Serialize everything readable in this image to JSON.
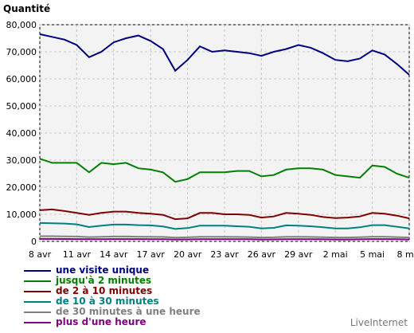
{
  "chart_data": {
    "type": "line",
    "ylabel": "Quantité",
    "ylim": [
      0,
      80000
    ],
    "y_ticks": [
      "0",
      "10,000",
      "20,000",
      "30,000",
      "40,000",
      "50,000",
      "60,000",
      "70,000",
      "80,000"
    ],
    "x_tick_labels": [
      "8 avr",
      "11 avr",
      "14 avr",
      "17 avr",
      "20 avr",
      "23 avr",
      "26 avr",
      "29 avr",
      "2 mai",
      "5 mai",
      "8 mai"
    ],
    "grid": true,
    "legend_position": "bottom",
    "series": [
      {
        "name": "une visite unique",
        "color": "#000080",
        "values": [
          76500,
          75500,
          74500,
          72500,
          68000,
          70000,
          73500,
          75000,
          76000,
          74000,
          71000,
          63000,
          67000,
          72000,
          70000,
          70500,
          70000,
          69500,
          68500,
          70000,
          71000,
          72500,
          71500,
          69500,
          67000,
          66500,
          67500,
          70500,
          69000,
          65500,
          61500
        ]
      },
      {
        "name": "jusqu'à 2 minutes",
        "color": "#008000",
        "values": [
          30500,
          29000,
          29000,
          29000,
          25500,
          29000,
          28500,
          29000,
          27000,
          26500,
          25500,
          22000,
          23000,
          25500,
          25500,
          25500,
          26000,
          26000,
          24000,
          24500,
          26500,
          27000,
          27000,
          26500,
          24500,
          24000,
          23500,
          28000,
          27500,
          25000,
          23500
        ]
      },
      {
        "name": "de 2 à 10 minutes",
        "color": "#800000",
        "values": [
          11500,
          11800,
          11200,
          10500,
          9800,
          10500,
          11000,
          11000,
          10500,
          10200,
          9800,
          8200,
          8500,
          10500,
          10500,
          10000,
          10000,
          9800,
          8800,
          9200,
          10500,
          10200,
          9800,
          9000,
          8600,
          8800,
          9200,
          10500,
          10200,
          9500,
          8500
        ]
      },
      {
        "name": "de 10 à 30 minutes",
        "color": "#008080",
        "values": [
          6800,
          6700,
          6600,
          6300,
          5300,
          5800,
          6200,
          6200,
          6000,
          5900,
          5500,
          4600,
          4900,
          5800,
          5800,
          5800,
          5600,
          5400,
          4800,
          5000,
          5900,
          5800,
          5600,
          5200,
          4800,
          4800,
          5200,
          6000,
          6000,
          5400,
          4800
        ]
      },
      {
        "name": "de 30 minutes à une heure",
        "color": "#808080",
        "values": [
          1900,
          1900,
          1850,
          1800,
          1600,
          1700,
          1800,
          1800,
          1750,
          1700,
          1650,
          1400,
          1500,
          1700,
          1700,
          1700,
          1650,
          1600,
          1450,
          1500,
          1700,
          1700,
          1650,
          1550,
          1450,
          1450,
          1550,
          1750,
          1750,
          1600,
          1450
        ]
      },
      {
        "name": "plus d'une heure",
        "color": "#800080",
        "values": [
          900,
          900,
          880,
          850,
          780,
          820,
          860,
          860,
          840,
          820,
          800,
          700,
          740,
          820,
          820,
          820,
          800,
          780,
          720,
          740,
          820,
          820,
          800,
          760,
          720,
          720,
          760,
          840,
          840,
          780,
          720
        ]
      }
    ]
  },
  "footer": {
    "brand": "LiveInternet"
  }
}
